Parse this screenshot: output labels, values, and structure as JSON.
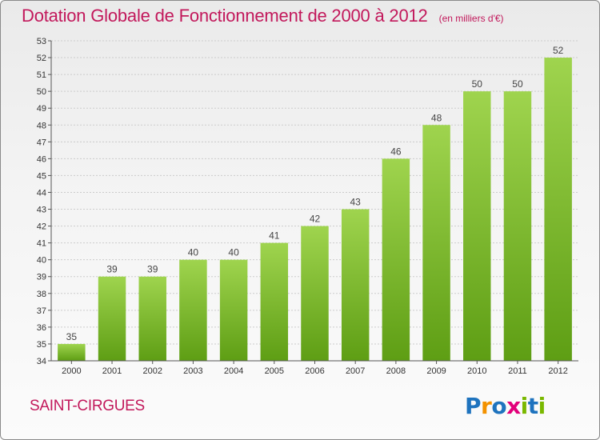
{
  "header": {
    "title": "Dotation Globale de Fonctionnement de 2000 à 2012",
    "subtitle": "(en milliers d'€)"
  },
  "commune": "SAINT-CIRGUES",
  "logo": {
    "text": "Proxiti",
    "letters": [
      {
        "ch": "P",
        "color": "#1e73be"
      },
      {
        "ch": "r",
        "color": "#f39200"
      },
      {
        "ch": "o",
        "color": "#1e73be"
      },
      {
        "ch": "x",
        "color": "#e2007a"
      },
      {
        "ch": "i",
        "color": "#7ab800"
      },
      {
        "ch": "t",
        "color": "#1e73be"
      },
      {
        "ch": "i",
        "color": "#7ab800"
      }
    ]
  },
  "colors": {
    "accent": "#c2185b",
    "bar_top": "#9fd44e",
    "bar_bottom": "#5e9e14",
    "axis": "#555555",
    "grid": "#cccccc"
  },
  "chart_data": {
    "type": "bar",
    "categories": [
      "2000",
      "2001",
      "2002",
      "2003",
      "2004",
      "2005",
      "2006",
      "2007",
      "2008",
      "2009",
      "2010",
      "2011",
      "2012"
    ],
    "values": [
      35,
      39,
      39,
      40,
      40,
      41,
      42,
      43,
      46,
      48,
      50,
      50,
      52
    ],
    "ylim": [
      34,
      53
    ],
    "yticks": [
      34,
      35,
      36,
      37,
      38,
      39,
      40,
      41,
      42,
      43,
      44,
      45,
      46,
      47,
      48,
      49,
      50,
      51,
      52,
      53
    ],
    "grid": true,
    "data_labels": true
  }
}
